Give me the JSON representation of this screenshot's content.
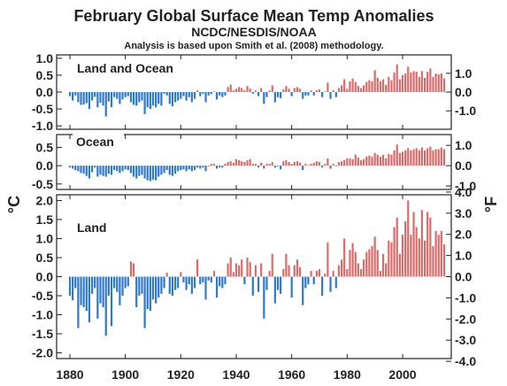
{
  "chart_data": {
    "type": "bar",
    "title": "February Global Surface Mean Temp Anomalies",
    "subtitle": "NCDC/NESDIS/NOAA",
    "note": "Analysis is based upon Smith et al. (2008) methodology.",
    "left_unit": "°C",
    "right_unit": "°F",
    "x_ticks": [
      "1880",
      "1900",
      "1920",
      "1940",
      "1960",
      "1980",
      "2000"
    ],
    "colors": {
      "positive": "#d96b6b",
      "negative": "#2e78cf"
    },
    "grid": false,
    "panels": [
      {
        "name": "Land and Ocean",
        "ylim_c": [
          -1.1,
          1.1
        ],
        "c_ticks": [
          "1.0",
          "0.5",
          "0.0",
          "-0.5",
          "-1.0"
        ],
        "f_ticks": [
          "1.0",
          "0.0",
          "-1.0"
        ],
        "x": [
          1880,
          1881,
          1882,
          1883,
          1884,
          1885,
          1886,
          1887,
          1888,
          1889,
          1890,
          1891,
          1892,
          1893,
          1894,
          1895,
          1896,
          1897,
          1898,
          1899,
          1900,
          1901,
          1902,
          1903,
          1904,
          1905,
          1906,
          1907,
          1908,
          1909,
          1910,
          1911,
          1912,
          1913,
          1914,
          1915,
          1916,
          1917,
          1918,
          1919,
          1920,
          1921,
          1922,
          1923,
          1924,
          1925,
          1926,
          1927,
          1928,
          1929,
          1930,
          1931,
          1932,
          1933,
          1934,
          1935,
          1936,
          1937,
          1938,
          1939,
          1940,
          1941,
          1942,
          1943,
          1944,
          1945,
          1946,
          1947,
          1948,
          1949,
          1950,
          1951,
          1952,
          1953,
          1954,
          1955,
          1956,
          1957,
          1958,
          1959,
          1960,
          1961,
          1962,
          1963,
          1964,
          1965,
          1966,
          1967,
          1968,
          1969,
          1970,
          1971,
          1972,
          1973,
          1974,
          1975,
          1976,
          1977,
          1978,
          1979,
          1980,
          1981,
          1982,
          1983,
          1984,
          1985,
          1986,
          1987,
          1988,
          1989,
          1990,
          1991,
          1992,
          1993,
          1994,
          1995,
          1996,
          1997,
          1998,
          1999,
          2000,
          2001,
          2002,
          2003,
          2004,
          2005,
          2006,
          2007,
          2008,
          2009,
          2010,
          2011,
          2012,
          2013,
          2014,
          2015
        ],
        "values": [
          -0.12,
          -0.25,
          -0.1,
          -0.3,
          -0.38,
          -0.37,
          -0.33,
          -0.5,
          -0.25,
          -0.14,
          -0.45,
          -0.32,
          -0.4,
          -0.72,
          -0.28,
          -0.45,
          -0.15,
          -0.2,
          -0.35,
          -0.22,
          -0.15,
          -0.12,
          -0.3,
          -0.38,
          -0.4,
          -0.3,
          -0.25,
          -0.65,
          -0.45,
          -0.5,
          -0.4,
          -0.45,
          -0.35,
          -0.4,
          -0.05,
          -0.1,
          -0.35,
          -0.42,
          -0.3,
          -0.25,
          -0.2,
          -0.12,
          -0.25,
          -0.15,
          -0.3,
          -0.2,
          0.05,
          -0.12,
          -0.05,
          -0.3,
          -0.1,
          -0.06,
          0.02,
          -0.22,
          -0.1,
          -0.15,
          -0.1,
          0.15,
          0.22,
          0.05,
          0.1,
          0.15,
          0.12,
          0.05,
          0.18,
          0.1,
          -0.05,
          0.05,
          -0.12,
          0.12,
          -0.35,
          -0.15,
          0.05,
          0.2,
          -0.3,
          -0.15,
          -0.18,
          0.08,
          0.18,
          0.1,
          -0.12,
          0.12,
          0.15,
          0.1,
          -0.2,
          -0.1,
          -0.1,
          0.05,
          -0.1,
          0.05,
          0.08,
          -0.15,
          0.02,
          0.28,
          -0.2,
          0.05,
          -0.15,
          0.12,
          0.2,
          0.38,
          0.1,
          0.32,
          0.4,
          0.3,
          0.18,
          0.12,
          0.2,
          0.3,
          0.35,
          0.32,
          0.65,
          0.42,
          0.32,
          0.38,
          0.22,
          0.45,
          0.35,
          0.58,
          0.82,
          0.38,
          0.5,
          0.55,
          0.75,
          0.58,
          0.62,
          0.6,
          0.45,
          0.62,
          0.42,
          0.6,
          0.7,
          0.45,
          0.55,
          0.52,
          0.55,
          0.4
        ]
      },
      {
        "name": "Ocean",
        "ylim_c": [
          -0.65,
          0.85
        ],
        "c_ticks": [
          "0.5",
          "0.0",
          "-0.5"
        ],
        "f_ticks": [
          "1.0",
          "0.0",
          "-1.0"
        ],
        "x": [
          1880,
          1881,
          1882,
          1883,
          1884,
          1885,
          1886,
          1887,
          1888,
          1889,
          1890,
          1891,
          1892,
          1893,
          1894,
          1895,
          1896,
          1897,
          1898,
          1899,
          1900,
          1901,
          1902,
          1903,
          1904,
          1905,
          1906,
          1907,
          1908,
          1909,
          1910,
          1911,
          1912,
          1913,
          1914,
          1915,
          1916,
          1917,
          1918,
          1919,
          1920,
          1921,
          1922,
          1923,
          1924,
          1925,
          1926,
          1927,
          1928,
          1929,
          1930,
          1931,
          1932,
          1933,
          1934,
          1935,
          1936,
          1937,
          1938,
          1939,
          1940,
          1941,
          1942,
          1943,
          1944,
          1945,
          1946,
          1947,
          1948,
          1949,
          1950,
          1951,
          1952,
          1953,
          1954,
          1955,
          1956,
          1957,
          1958,
          1959,
          1960,
          1961,
          1962,
          1963,
          1964,
          1965,
          1966,
          1967,
          1968,
          1969,
          1970,
          1971,
          1972,
          1973,
          1974,
          1975,
          1976,
          1977,
          1978,
          1979,
          1980,
          1981,
          1982,
          1983,
          1984,
          1985,
          1986,
          1987,
          1988,
          1989,
          1990,
          1991,
          1992,
          1993,
          1994,
          1995,
          1996,
          1997,
          1998,
          1999,
          2000,
          2001,
          2002,
          2003,
          2004,
          2005,
          2006,
          2007,
          2008,
          2009,
          2010,
          2011,
          2012,
          2013,
          2014,
          2015
        ],
        "values": [
          -0.05,
          -0.08,
          -0.12,
          -0.15,
          -0.2,
          -0.22,
          -0.28,
          -0.35,
          -0.18,
          -0.05,
          -0.3,
          -0.25,
          -0.28,
          -0.3,
          -0.22,
          -0.25,
          -0.12,
          -0.15,
          -0.2,
          -0.15,
          -0.1,
          -0.12,
          -0.2,
          -0.3,
          -0.35,
          -0.28,
          -0.25,
          -0.35,
          -0.4,
          -0.42,
          -0.38,
          -0.4,
          -0.3,
          -0.25,
          -0.2,
          -0.12,
          -0.25,
          -0.28,
          -0.22,
          -0.15,
          -0.12,
          -0.1,
          -0.15,
          -0.1,
          -0.15,
          -0.12,
          -0.05,
          -0.08,
          -0.05,
          -0.15,
          -0.02,
          0.05,
          0.05,
          -0.08,
          -0.05,
          -0.05,
          0.05,
          0.1,
          0.12,
          0.08,
          0.18,
          0.15,
          0.12,
          0.1,
          0.15,
          0.18,
          0.05,
          0.05,
          -0.05,
          0.08,
          -0.08,
          0.05,
          0.05,
          0.1,
          -0.05,
          -0.02,
          -0.1,
          0.12,
          0.15,
          0.1,
          0.05,
          0.1,
          0.12,
          0.08,
          -0.12,
          0.05,
          0.02,
          0.05,
          0.08,
          0.12,
          0.1,
          -0.05,
          0.05,
          0.2,
          -0.08,
          0.05,
          -0.02,
          0.1,
          0.12,
          0.15,
          0.2,
          0.2,
          0.18,
          0.3,
          0.22,
          0.15,
          0.18,
          0.25,
          0.28,
          0.25,
          0.35,
          0.3,
          0.25,
          0.3,
          0.2,
          0.32,
          0.3,
          0.42,
          0.58,
          0.35,
          0.38,
          0.42,
          0.48,
          0.42,
          0.45,
          0.48,
          0.42,
          0.5,
          0.42,
          0.48,
          0.52,
          0.42,
          0.45,
          0.45,
          0.5,
          0.45
        ]
      },
      {
        "name": "Land",
        "ylim_c": [
          -2.15,
          2.15
        ],
        "c_ticks": [
          "2.0",
          "1.5",
          "1.0",
          "0.5",
          "0.0",
          "-0.5",
          "-1.0",
          "-1.5",
          "-2.0"
        ],
        "f_ticks": [
          "4.0",
          "3.0",
          "2.0",
          "1.0",
          "0.0",
          "-1.0",
          "-2.0",
          "-3.0",
          "-4.0"
        ],
        "x": [
          1880,
          1881,
          1882,
          1883,
          1884,
          1885,
          1886,
          1887,
          1888,
          1889,
          1890,
          1891,
          1892,
          1893,
          1894,
          1895,
          1896,
          1897,
          1898,
          1899,
          1900,
          1901,
          1902,
          1903,
          1904,
          1905,
          1906,
          1907,
          1908,
          1909,
          1910,
          1911,
          1912,
          1913,
          1914,
          1915,
          1916,
          1917,
          1918,
          1919,
          1920,
          1921,
          1922,
          1923,
          1924,
          1925,
          1926,
          1927,
          1928,
          1929,
          1930,
          1931,
          1932,
          1933,
          1934,
          1935,
          1936,
          1937,
          1938,
          1939,
          1940,
          1941,
          1942,
          1943,
          1944,
          1945,
          1946,
          1947,
          1948,
          1949,
          1950,
          1951,
          1952,
          1953,
          1954,
          1955,
          1956,
          1957,
          1958,
          1959,
          1960,
          1961,
          1962,
          1963,
          1964,
          1965,
          1966,
          1967,
          1968,
          1969,
          1970,
          1971,
          1972,
          1973,
          1974,
          1975,
          1976,
          1977,
          1978,
          1979,
          1980,
          1981,
          1982,
          1983,
          1984,
          1985,
          1986,
          1987,
          1988,
          1989,
          1990,
          1991,
          1992,
          1993,
          1994,
          1995,
          1996,
          1997,
          1998,
          1999,
          2000,
          2001,
          2002,
          2003,
          2004,
          2005,
          2006,
          2007,
          2008,
          2009,
          2010,
          2011,
          2012,
          2013,
          2014,
          2015
        ],
        "values": [
          -0.5,
          -0.62,
          -0.3,
          -1.35,
          -0.75,
          -0.8,
          -0.9,
          -1.2,
          -0.45,
          -0.3,
          -1.1,
          -0.7,
          -0.8,
          -1.55,
          -0.5,
          -1.3,
          -0.3,
          -0.4,
          -0.75,
          -0.5,
          -0.3,
          -0.25,
          0.4,
          0.35,
          -0.8,
          -0.5,
          -0.45,
          -1.35,
          -0.85,
          -0.9,
          -0.6,
          -0.7,
          -0.55,
          -0.45,
          -0.3,
          0.1,
          -0.45,
          -0.5,
          -0.35,
          -0.3,
          0.12,
          -0.15,
          -0.35,
          -0.2,
          -0.45,
          -0.3,
          0.45,
          -0.2,
          -0.15,
          -0.6,
          -0.1,
          -0.15,
          0.15,
          -0.55,
          -0.25,
          -0.3,
          -0.2,
          0.35,
          0.5,
          0.12,
          0.35,
          0.3,
          0.45,
          -0.2,
          0.5,
          0.38,
          -0.5,
          0.3,
          -0.4,
          0.35,
          -1.1,
          -0.35,
          0.15,
          0.6,
          -0.7,
          -0.35,
          -0.45,
          0.2,
          0.6,
          0.3,
          -0.55,
          0.3,
          0.45,
          0.25,
          -0.75,
          -0.3,
          -0.2,
          0.15,
          -0.2,
          0.15,
          0.2,
          -0.5,
          0.08,
          0.9,
          -0.4,
          0.15,
          -0.3,
          0.3,
          0.45,
          1.0,
          0.2,
          0.7,
          0.88,
          0.65,
          0.35,
          0.2,
          0.45,
          0.65,
          0.72,
          0.8,
          1.05,
          0.7,
          0.15,
          0.6,
          0.35,
          0.95,
          0.9,
          1.3,
          1.55,
          0.6,
          1.1,
          1.45,
          2.0,
          1.1,
          1.7,
          1.3,
          1.0,
          1.75,
          0.95,
          1.7,
          1.55,
          0.8,
          1.2,
          1.1,
          1.2,
          0.85
        ]
      }
    ]
  }
}
